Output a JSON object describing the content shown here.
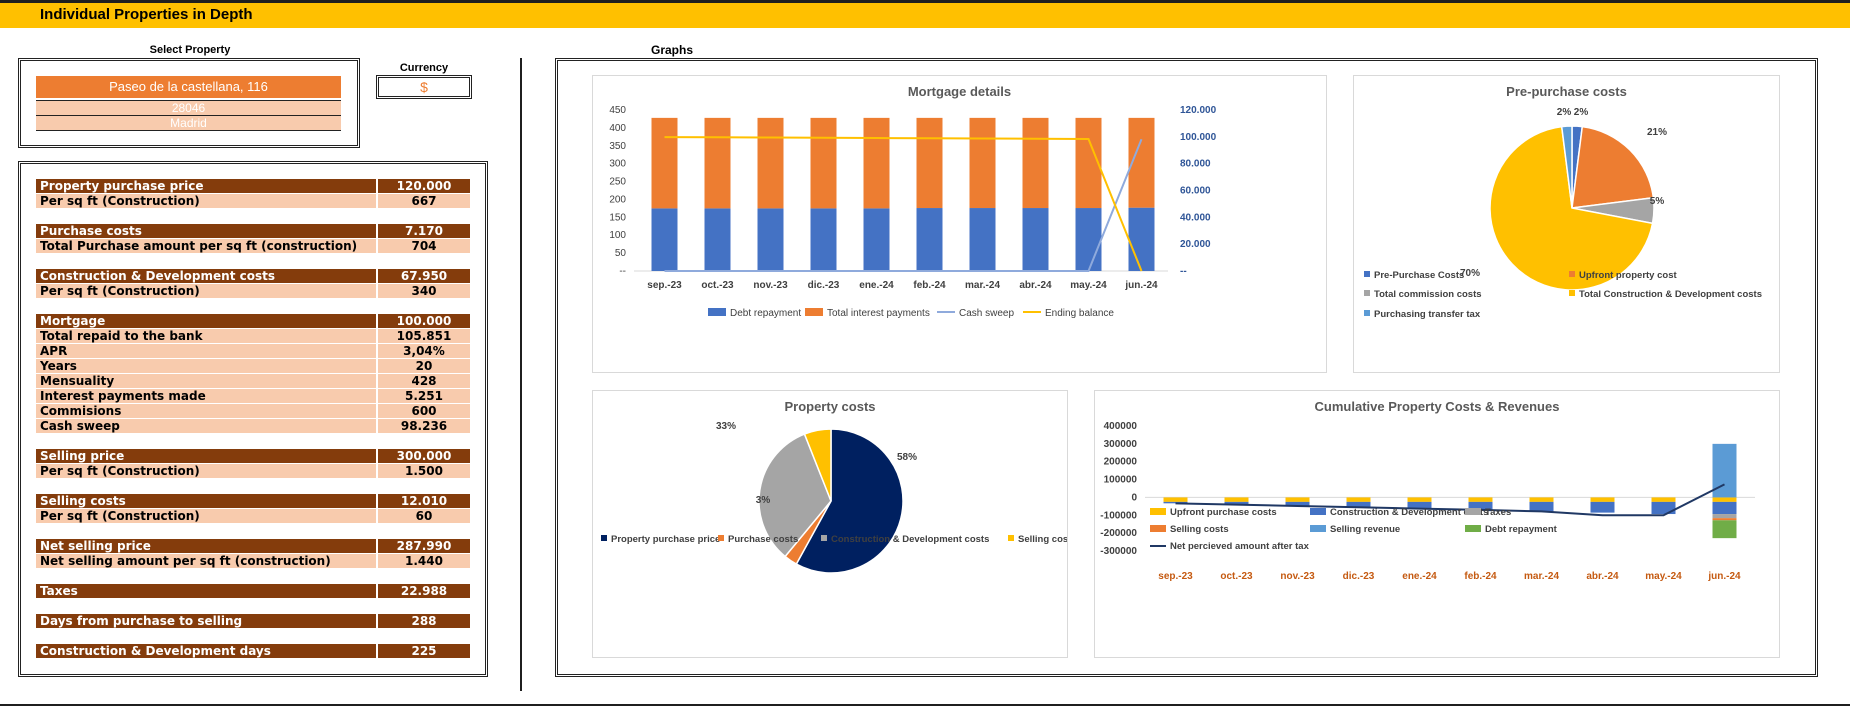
{
  "header": {
    "title": "Individual Properties in Depth"
  },
  "select": {
    "label": "Select Property",
    "address": "Paseo de la castellana, 116",
    "zip": "28046",
    "city": "Madrid"
  },
  "currency": {
    "label": "Currency",
    "value": "$"
  },
  "graphs_label": "Graphs",
  "colors": {
    "dark_row": "#843C0C",
    "light_row": "#F8CBAD",
    "orange": "#ED7D31",
    "blue": "#4472C4",
    "yellow": "#FFC000",
    "navy": "#002060",
    "gray": "#A5A5A5",
    "light_blue": "#5B9BD5",
    "green": "#70AD47",
    "header": "#FFC000"
  },
  "metrics": [
    {
      "label": "Property purchase price",
      "value": "120.000",
      "style": "dark"
    },
    {
      "label": "Per sq ft (Construction)",
      "value": "667",
      "style": "light"
    },
    {
      "label": "Purchase costs",
      "value": "7.170",
      "style": "dark"
    },
    {
      "label": "Total Purchase amount per sq ft (construction)",
      "value": "704",
      "style": "light"
    },
    {
      "label": "Construction & Development costs",
      "value": "67.950",
      "style": "dark"
    },
    {
      "label": "Per sq ft (Construction)",
      "value": "340",
      "style": "light"
    },
    {
      "label": "Mortgage",
      "value": "100.000",
      "style": "dark"
    },
    {
      "label": "Total repaid to the bank",
      "value": "105.851",
      "style": "light"
    },
    {
      "label": "APR",
      "value": "3,04%",
      "style": "light"
    },
    {
      "label": "Years",
      "value": "20",
      "style": "light"
    },
    {
      "label": "Mensuality",
      "value": "428",
      "style": "light"
    },
    {
      "label": "Interest payments made",
      "value": "5.251",
      "style": "light"
    },
    {
      "label": "Commisions",
      "value": "600",
      "style": "light"
    },
    {
      "label": "Cash sweep",
      "value": "98.236",
      "style": "light"
    },
    {
      "label": "Selling price",
      "value": "300.000",
      "style": "dark"
    },
    {
      "label": "Per sq ft (Construction)",
      "value": "1.500",
      "style": "light"
    },
    {
      "label": "Selling costs",
      "value": "12.010",
      "style": "dark"
    },
    {
      "label": "Per sq ft (Construction)",
      "value": "60",
      "style": "light"
    },
    {
      "label": "Net selling price",
      "value": "287.990",
      "style": "dark"
    },
    {
      "label": "Net selling amount per sq ft (construction)",
      "value": "1.440",
      "style": "light"
    },
    {
      "label": "Taxes",
      "value": "22.988",
      "style": "dark"
    },
    {
      "label": "Days from purchase to selling",
      "value": "288",
      "style": "dark"
    },
    {
      "label": "Construction & Development days",
      "value": "225",
      "style": "dark"
    }
  ],
  "chart_data": [
    {
      "id": "mortgage",
      "type": "bar",
      "title": "Mortgage details",
      "categories": [
        "sep.-23",
        "oct.-23",
        "nov.-23",
        "dic.-23",
        "ene.-24",
        "feb.-24",
        "mar.-24",
        "abr.-24",
        "may.-24",
        "jun.-24"
      ],
      "ylim": [
        0,
        450
      ],
      "y_ticks": [
        "450",
        "400",
        "350",
        "300",
        "250",
        "200",
        "150",
        "100",
        "50",
        "--"
      ],
      "y2lim": [
        0,
        120000
      ],
      "y2_ticks": [
        "120.000",
        "100.000",
        "80.000",
        "60.000",
        "40.000",
        "20.000",
        "--"
      ],
      "series": [
        {
          "name": "Debt repayment",
          "axis": "left",
          "stacked": true,
          "color": "#4472C4",
          "values": [
            175,
            175,
            175,
            175,
            175,
            176,
            176,
            176,
            176,
            177
          ]
        },
        {
          "name": "Total interest payments",
          "axis": "left",
          "stacked": true,
          "color": "#ED7D31",
          "values": [
            253,
            253,
            253,
            253,
            253,
            252,
            252,
            252,
            252,
            251
          ]
        },
        {
          "name": "Cash sweep",
          "axis": "right",
          "type": "line",
          "color": "#8FAADC",
          "values": [
            0,
            0,
            0,
            0,
            0,
            0,
            0,
            0,
            0,
            98236
          ]
        },
        {
          "name": "Ending balance",
          "axis": "right",
          "type": "line",
          "color": "#FFC000",
          "values": [
            99825,
            99650,
            99475,
            99300,
            99124,
            98948,
            98772,
            98595,
            98418,
            0
          ]
        }
      ],
      "legend": "bottom"
    },
    {
      "id": "pre_purchase",
      "type": "pie",
      "title": "Pre-purchase costs",
      "labels": [
        "Pre-Purchase Costs",
        "Upfront property cost",
        "Total commission costs",
        "Total Construction & Development costs",
        "Purchasing transfer tax"
      ],
      "values": [
        2,
        21,
        5,
        70,
        2
      ],
      "value_labels": [
        "2%",
        "21%",
        "5%",
        "70%",
        "2%"
      ],
      "colors": [
        "#4472C4",
        "#ED7D31",
        "#A5A5A5",
        "#FFC000",
        "#5B9BD5"
      ],
      "legend": "bottom"
    },
    {
      "id": "property_costs",
      "type": "pie",
      "title": "Property costs",
      "labels": [
        "Property purchase price",
        "Purchase costs",
        "Construction & Development costs",
        "Selling costs"
      ],
      "values": [
        58,
        3,
        33,
        6
      ],
      "value_labels": [
        "58%",
        "3%",
        "33%",
        "6%"
      ],
      "colors": [
        "#002060",
        "#ED7D31",
        "#A5A5A5",
        "#FFC000"
      ],
      "legend": "bottom"
    },
    {
      "id": "cumulative",
      "type": "bar",
      "title": "Cumulative Property Costs & Revenues",
      "categories": [
        "sep.-23",
        "oct.-23",
        "nov.-23",
        "dic.-23",
        "ene.-24",
        "feb.-24",
        "mar.-24",
        "abr.-24",
        "may.-24",
        "jun.-24"
      ],
      "ylim": [
        -300000,
        400000
      ],
      "y_ticks": [
        "400000",
        "300000",
        "200000",
        "100000",
        "0",
        "-100000",
        "-200000",
        "-300000"
      ],
      "series": [
        {
          "name": "Upfront purchase costs",
          "color": "#FFC000",
          "values": [
            -25000,
            -25000,
            -25000,
            -25000,
            -25000,
            -25000,
            -25000,
            -25000,
            -25000,
            -25000
          ]
        },
        {
          "name": "Construction & Development costs",
          "color": "#4472C4",
          "values": [
            -8000,
            -15000,
            -23000,
            -30000,
            -38000,
            -45000,
            -53000,
            -60000,
            -68000,
            -68000
          ]
        },
        {
          "name": "Taxes",
          "color": "#A5A5A5",
          "values": [
            0,
            0,
            0,
            0,
            0,
            0,
            0,
            0,
            0,
            -23000
          ]
        },
        {
          "name": "Selling costs",
          "color": "#ED7D31",
          "values": [
            0,
            0,
            0,
            0,
            0,
            0,
            0,
            0,
            0,
            -12000
          ]
        },
        {
          "name": "Selling revenue",
          "color": "#5B9BD5",
          "values": [
            0,
            0,
            0,
            0,
            0,
            0,
            0,
            0,
            0,
            300000
          ]
        },
        {
          "name": "Debt repayment",
          "color": "#70AD47",
          "values": [
            0,
            0,
            0,
            0,
            0,
            0,
            0,
            0,
            0,
            -100000
          ]
        },
        {
          "name": "Net percieved amount after tax",
          "type": "line",
          "color": "#203864",
          "values": [
            -33000,
            -40000,
            -48000,
            -55000,
            -63000,
            -70000,
            -78000,
            -100000,
            -100000,
            73000
          ]
        }
      ],
      "legend": "bottom"
    }
  ]
}
